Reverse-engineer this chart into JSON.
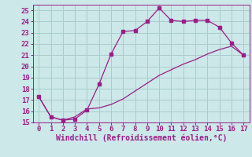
{
  "title": "",
  "xlabel": "Windchill (Refroidissement éolien,°C)",
  "ylabel": "",
  "xlim": [
    -0.5,
    17.5
  ],
  "ylim": [
    15,
    25.5
  ],
  "yticks": [
    15,
    16,
    17,
    18,
    19,
    20,
    21,
    22,
    23,
    24,
    25
  ],
  "xticks": [
    0,
    1,
    2,
    3,
    4,
    5,
    6,
    7,
    8,
    9,
    10,
    11,
    12,
    13,
    14,
    15,
    16,
    17
  ],
  "line1_x": [
    0,
    1,
    2,
    3,
    4,
    5,
    6,
    7,
    8,
    9,
    10,
    11,
    12,
    13,
    14,
    15,
    16,
    17
  ],
  "line1_y": [
    17.3,
    15.5,
    15.2,
    15.3,
    16.1,
    18.4,
    21.1,
    23.1,
    23.2,
    24.0,
    25.2,
    24.1,
    24.0,
    24.1,
    24.1,
    23.5,
    22.1,
    21.0
  ],
  "line2_x": [
    0,
    1,
    2,
    3,
    4,
    5,
    6,
    7,
    8,
    9,
    10,
    11,
    12,
    13,
    14,
    15,
    16,
    17
  ],
  "line2_y": [
    17.3,
    15.5,
    15.2,
    15.5,
    16.2,
    16.3,
    16.6,
    17.1,
    17.8,
    18.5,
    19.2,
    19.7,
    20.2,
    20.6,
    21.1,
    21.5,
    21.8,
    21.0
  ],
  "line_color": "#9b1d8a",
  "bg_color": "#cce8e8",
  "grid_color": "#aacccc",
  "marker": "s",
  "marker_size": 2.5,
  "font_color": "#9b1d8a",
  "xlabel_fontsize": 7,
  "tick_fontsize": 6.5
}
